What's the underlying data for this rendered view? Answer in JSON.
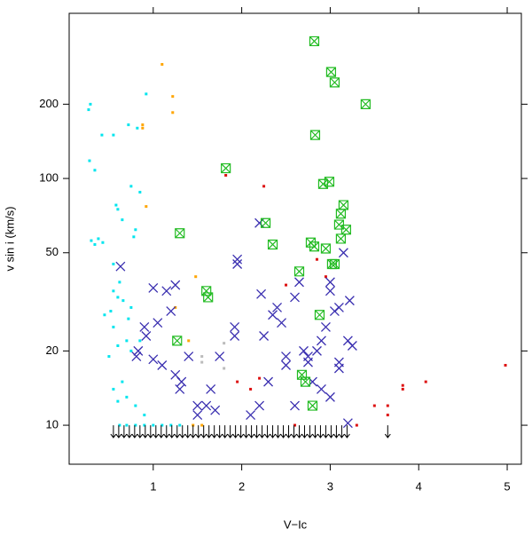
{
  "chart_data": {
    "type": "scatter",
    "xlabel": "V−Ic",
    "ylabel": "v sin i (km/s)",
    "xlim": [
      0.05,
      5.16
    ],
    "ylim": [
      6.95,
      467
    ],
    "ylog": true,
    "xticks": [
      1,
      2,
      3,
      4,
      5
    ],
    "yticks": [
      10,
      20,
      50,
      100,
      200
    ],
    "series": [
      {
        "color": "#00e5ee",
        "marker": "point",
        "x": [
          0.29,
          0.27,
          0.42,
          0.55,
          0.28,
          0.34,
          0.92,
          0.72,
          0.82,
          0.75,
          0.85,
          0.58,
          0.6,
          0.65,
          0.38,
          0.3,
          0.34,
          0.43,
          0.8,
          0.78,
          0.55,
          0.62,
          0.55,
          0.6,
          0.45,
          0.52,
          0.66,
          0.75,
          0.72,
          0.55,
          0.7,
          0.85,
          0.6,
          0.75,
          0.5,
          0.65,
          0.55,
          0.7,
          0.8,
          0.6,
          0.9,
          0.62,
          0.7,
          0.8,
          0.9,
          1.0,
          1.1,
          1.2,
          1.3
        ],
        "values": [
          200,
          190,
          150,
          150,
          118,
          108,
          220,
          165,
          160,
          93,
          88,
          78,
          75,
          68,
          57,
          56,
          54,
          55,
          62,
          58,
          45,
          38,
          35,
          33,
          28,
          29,
          32,
          30,
          27,
          25,
          22,
          22,
          21,
          20,
          19,
          15,
          14,
          13,
          12,
          12.5,
          11,
          10,
          10,
          10,
          10,
          10,
          10,
          10,
          10
        ]
      },
      {
        "color": "#ffa500",
        "marker": "point",
        "x": [
          1.1,
          1.22,
          1.22,
          0.88,
          0.88,
          0.92,
          1.25,
          1.4,
          1.48,
          1.45,
          1.55
        ],
        "values": [
          290,
          215,
          185,
          165,
          160,
          77,
          30,
          22,
          40,
          10,
          10
        ]
      },
      {
        "color": "#dd1111",
        "marker": "point",
        "x": [
          1.82,
          2.25,
          2.2,
          3.65,
          3.65,
          3.82,
          3.82,
          4.08,
          4.98,
          3.5,
          2.95,
          2.5,
          1.95,
          2.85,
          2.1,
          2.6,
          3.3
        ],
        "values": [
          103,
          93,
          15.5,
          11,
          12,
          14.5,
          14,
          15,
          17.5,
          12,
          40,
          37,
          15,
          47,
          14,
          10,
          10
        ]
      },
      {
        "color": "#bbbbbb",
        "marker": "point",
        "x": [
          1.55,
          1.55,
          1.8,
          1.8
        ],
        "values": [
          19,
          18,
          17,
          21.5
        ]
      },
      {
        "color": "#3a2fb0",
        "marker": "cross",
        "x": [
          0.63,
          0.92,
          0.9,
          0.83,
          0.81,
          1.0,
          1.05,
          1.15,
          1.2,
          1.25,
          1.0,
          1.1,
          1.25,
          1.3,
          1.32,
          1.4,
          1.5,
          1.6,
          1.65,
          1.75,
          1.92,
          1.92,
          1.95,
          1.95,
          2.2,
          2.22,
          2.25,
          2.3,
          2.35,
          2.4,
          2.45,
          2.5,
          2.5,
          2.6,
          2.65,
          2.7,
          2.75,
          2.75,
          2.8,
          2.85,
          2.9,
          2.95,
          3.0,
          3.0,
          3.05,
          3.1,
          3.15,
          3.2,
          3.25,
          3.22,
          3.1,
          3.1,
          3.0,
          2.9,
          2.2,
          2.6,
          1.5,
          1.7,
          3.2,
          2.1
        ],
        "values": [
          44,
          23,
          25,
          20,
          19,
          36,
          26,
          35,
          29,
          37,
          18.5,
          17.5,
          16,
          14,
          15,
          19,
          12,
          12,
          14,
          19,
          25,
          23,
          47,
          45,
          66,
          34,
          23,
          15,
          28,
          30,
          26,
          17.5,
          19,
          33,
          38,
          20,
          18,
          19,
          15,
          20,
          22,
          25,
          35,
          38,
          29,
          30,
          50,
          22,
          21,
          32,
          17,
          18,
          13,
          14,
          12,
          12,
          11,
          11.5,
          10.2,
          11
        ]
      },
      {
        "color": "#22bb22",
        "marker": "boxcross",
        "x": [
          2.82,
          3.01,
          3.05,
          2.83,
          3.4,
          1.82,
          2.99,
          2.92,
          3.15,
          3.12,
          2.27,
          3.1,
          3.18,
          1.3,
          2.35,
          2.78,
          2.82,
          2.95,
          3.12,
          3.02,
          3.05,
          2.65,
          1.6,
          1.62,
          1.27,
          2.88,
          2.68,
          2.72,
          2.8
        ],
        "values": [
          360,
          270,
          245,
          150,
          200,
          110,
          97,
          95,
          78,
          72,
          66,
          65,
          62,
          60,
          54,
          55,
          53,
          52,
          57,
          45,
          45,
          42,
          35,
          33,
          22,
          28,
          16,
          15,
          12
        ]
      },
      {
        "color": "#000000",
        "marker": "arrow",
        "x": [
          0.55,
          0.61,
          0.67,
          0.73,
          0.79,
          0.85,
          0.91,
          0.97,
          1.03,
          1.09,
          1.15,
          1.21,
          1.27,
          1.33,
          1.39,
          1.45,
          1.51,
          1.57,
          1.63,
          1.69,
          1.75,
          1.81,
          1.87,
          1.93,
          1.99,
          2.05,
          2.11,
          2.17,
          2.23,
          2.29,
          2.35,
          2.41,
          2.47,
          2.53,
          2.59,
          2.65,
          2.71,
          2.77,
          2.83,
          2.89,
          2.95,
          3.01,
          3.07,
          3.13,
          3.19,
          3.65
        ],
        "values": [
          10,
          10,
          10,
          10,
          10,
          10,
          10,
          10,
          10,
          10,
          10,
          10,
          10,
          10,
          10,
          10,
          10,
          10,
          10,
          10,
          10,
          10,
          10,
          10,
          10,
          10,
          10,
          10,
          10,
          10,
          10,
          10,
          10,
          10,
          10,
          10,
          10,
          10,
          10,
          10,
          10,
          10,
          10,
          10,
          10,
          10
        ]
      }
    ]
  }
}
